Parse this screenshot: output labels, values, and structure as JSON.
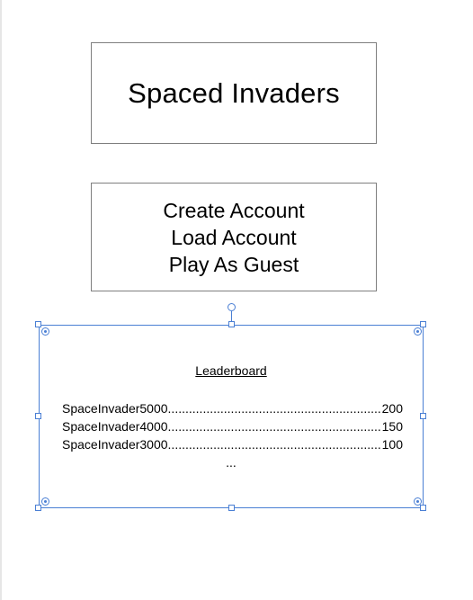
{
  "title": "Spaced Invaders",
  "menu": {
    "items": [
      "Create Account",
      "Load Account",
      "Play As Guest"
    ]
  },
  "leaderboard": {
    "title": "Leaderboard",
    "rows": [
      {
        "name": "SpaceInvader5000",
        "score": "200"
      },
      {
        "name": "SpaceInvader4000",
        "score": "150"
      },
      {
        "name": "SpaceInvader3000",
        "score": "100"
      }
    ],
    "more": "..."
  },
  "colors": {
    "selection": "#4a7fd4",
    "box_border": "#7f7f7f"
  }
}
